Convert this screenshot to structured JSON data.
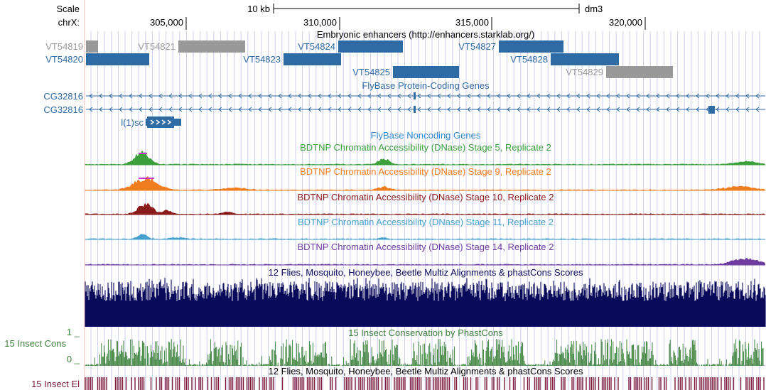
{
  "header": {
    "scale_label": "Scale",
    "scale_value": "10 kb",
    "assembly": "dm3",
    "chrom_label": "chrX:",
    "ticks": [
      "305,000",
      "310,000",
      "315,000",
      "320,000"
    ]
  },
  "tracks": {
    "enhancers": {
      "title": "Embryonic enhancers (http://enhancers.starklab.org/)",
      "items": [
        {
          "name": "VT54819",
          "color": "#999999"
        },
        {
          "name": "VT54821",
          "color": "#999999"
        },
        {
          "name": "VT54820",
          "color": "#2e6aa4"
        },
        {
          "name": "VT54824",
          "color": "#2e6aa4"
        },
        {
          "name": "VT54827",
          "color": "#2e6aa4"
        },
        {
          "name": "VT54823",
          "color": "#2e6aa4"
        },
        {
          "name": "VT54828",
          "color": "#2e6aa4"
        },
        {
          "name": "VT54825",
          "color": "#2e6aa4"
        },
        {
          "name": "VT54829",
          "color": "#999999"
        }
      ]
    },
    "coding_genes": {
      "title": "FlyBase Protein-Coding Genes",
      "genes": [
        "CG32816",
        "CG32816",
        "l(1)sc"
      ]
    },
    "noncoding": {
      "title": "FlyBase Noncoding Genes"
    },
    "dnase": [
      {
        "title": "BDTNP Chromatin Accessibility (DNase) Stage 5, Replicate 2",
        "color": "#3ca03c"
      },
      {
        "title": "BDTNP Chromatin Accessibility (DNase) Stage 9, Replicate 2",
        "color": "#f07d1e"
      },
      {
        "title": "BDTNP Chromatin Accessibility (DNase) Stage 10, Replicate 2",
        "color": "#8b1a1a"
      },
      {
        "title": "BDTNP Chromatin Accessibility (DNase) Stage 11, Replicate 2",
        "color": "#46a0cd"
      },
      {
        "title": "BDTNP Chromatin Accessibility (DNase) Stage 14, Replicate 2",
        "color": "#6e3ca0"
      }
    ],
    "multiz": {
      "title": "12 Flies, Mosquito, Honeybee, Beetle Multiz Alignments & phastCons Scores",
      "color": "#0a0a5a"
    },
    "insect_cons": {
      "title": "15 Insect Conservation by PhastCons",
      "label": "15 Insect Cons",
      "ymax": "1 _",
      "ymin": "0 _",
      "color": "#3c823c"
    },
    "insect_el": {
      "title": "12 Flies, Mosquito, Honeybee, Beetle Multiz Alignments & phastCons Scores",
      "label": "15 Insect El",
      "color": "#7a1a3a"
    }
  },
  "colors": {
    "gene_blue": "#2e6aa4",
    "guide_line": "#ccccee",
    "left_margin": "#f4b8b8"
  }
}
